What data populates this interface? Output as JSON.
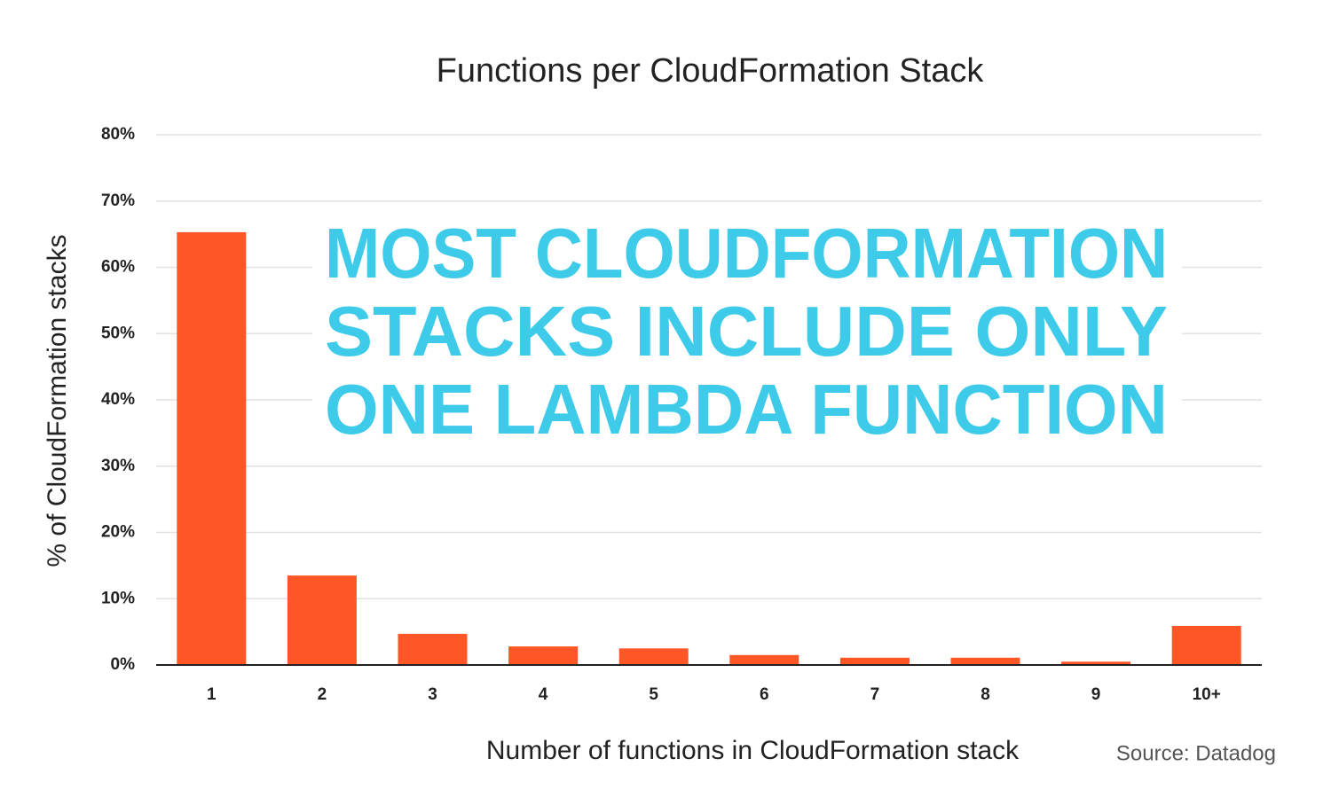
{
  "chart_data": {
    "type": "bar",
    "title": "Functions per CloudFormation Stack",
    "x_label": "Number of functions in CloudFormation stack",
    "y_label": "% of CloudFormation stacks",
    "source": "Source: Datadog",
    "annotation": [
      "MOST CLOUDFORMATION",
      "STACKS INCLUDE ONLY",
      "ONE LAMBDA FUNCTION"
    ],
    "annotation_color": "#3ecbe9",
    "categories": [
      "1",
      "2",
      "3",
      "4",
      "5",
      "6",
      "7",
      "8",
      "9",
      "10+"
    ],
    "values": [
      65.3,
      13.5,
      4.7,
      2.8,
      2.5,
      1.5,
      1.1,
      1.1,
      0.5,
      5.9
    ],
    "color": "#ff5628",
    "ylim": [
      0,
      80
    ],
    "yticks": [
      {
        "value": 0,
        "label": "0%"
      },
      {
        "value": 10,
        "label": "10%"
      },
      {
        "value": 20,
        "label": "20%"
      },
      {
        "value": 30,
        "label": "30%"
      },
      {
        "value": 40,
        "label": "40%"
      },
      {
        "value": 50,
        "label": "50%"
      },
      {
        "value": 60,
        "label": "60%"
      },
      {
        "value": 70,
        "label": "70%"
      },
      {
        "value": 80,
        "label": "80%"
      }
    ],
    "grid": true
  }
}
